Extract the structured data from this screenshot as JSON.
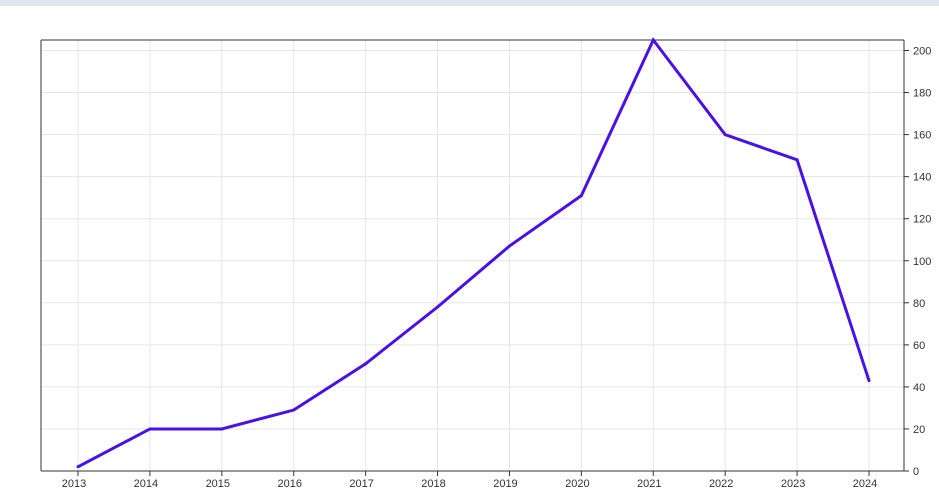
{
  "chart_data": {
    "type": "line",
    "title": "",
    "xlabel": "",
    "ylabel": "",
    "x": [
      "2013",
      "2014",
      "2015",
      "2016",
      "2017",
      "2018",
      "2019",
      "2020",
      "2021",
      "2022",
      "2023",
      "2024"
    ],
    "series": [
      {
        "values": [
          2,
          20,
          20,
          29,
          51,
          78,
          107,
          131,
          205,
          160,
          148,
          43
        ]
      }
    ],
    "ylim": [
      0,
      205
    ],
    "yticks": [
      0,
      20,
      40,
      60,
      80,
      100,
      120,
      140,
      160,
      180,
      200
    ],
    "y_axis_side": "right",
    "grid": true,
    "legend": "none",
    "line_color": "#4a10e8",
    "grid_color": "#e6e6e6",
    "axis_color": "#333333"
  }
}
